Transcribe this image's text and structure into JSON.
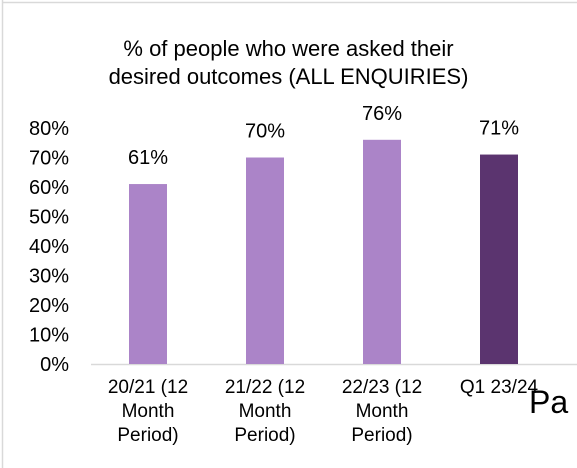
{
  "chart_data": {
    "type": "bar",
    "title_lines": [
      "% of people who were asked their",
      "desired outcomes (ALL ENQUIRIES)"
    ],
    "categories": [
      [
        "20/21 (12",
        "Month",
        "Period)"
      ],
      [
        "21/22 (12",
        "Month",
        "Period)"
      ],
      [
        "22/23 (12",
        "Month",
        "Period)"
      ],
      [
        "Q1 23/24"
      ]
    ],
    "values": [
      61,
      70,
      76,
      71
    ],
    "data_labels": [
      "61%",
      "70%",
      "76%",
      "71%"
    ],
    "y_ticks": [
      "0%",
      "10%",
      "20%",
      "30%",
      "40%",
      "50%",
      "60%",
      "70%",
      "80%"
    ],
    "ylim": [
      0,
      80
    ],
    "colors": [
      "#ab84c8",
      "#ab84c8",
      "#ab84c8",
      "#5b346f"
    ],
    "grid": false,
    "legend": "none"
  },
  "overflow_text": "Pa"
}
